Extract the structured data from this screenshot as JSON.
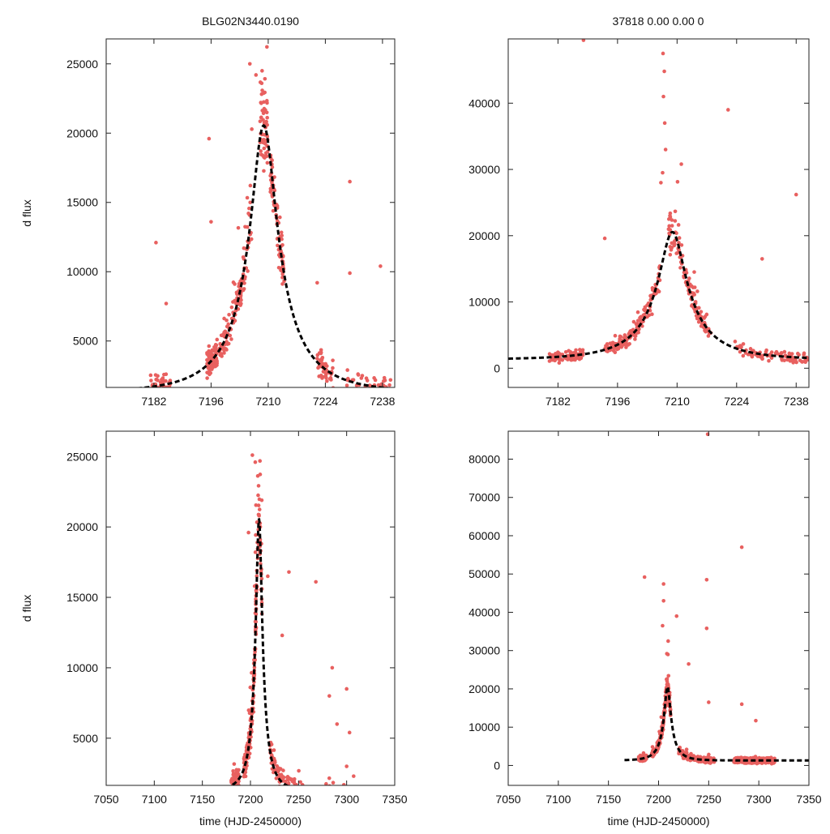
{
  "header": {
    "left_title": "BLG02N3440.0190",
    "right_title": "37818  0.00  0.00  0"
  },
  "colors": {
    "points": "#e8605f",
    "model": "#000000",
    "axes": "#222222"
  },
  "chart_data": [
    {
      "id": "top-left",
      "type": "scatter",
      "title": "",
      "xlabel": "",
      "ylabel": "d flux",
      "xlim": [
        7170.3,
        7241
      ],
      "ylim": [
        1650,
        26800
      ],
      "xticks": [
        7182,
        7196,
        7210,
        7224,
        7238
      ],
      "yticks": [
        5000,
        10000,
        15000,
        20000,
        25000
      ],
      "model": {
        "t0": 7208.9,
        "tE": 15.2,
        "peak": 20550,
        "baseline": 1300
      },
      "clusters": [
        {
          "t": [
            7181,
            7186
          ],
          "n": 60,
          "seed": 11
        },
        {
          "t": [
            7195,
            7197.5
          ],
          "n": 80,
          "seed": 12
        },
        {
          "t": [
            7198,
            7206
          ],
          "n": 120,
          "seed": 13
        },
        {
          "t": [
            7208,
            7210
          ],
          "n": 60,
          "seed": 14
        },
        {
          "t": [
            7210.5,
            7214
          ],
          "n": 80,
          "seed": 15
        },
        {
          "t": [
            7222,
            7226
          ],
          "n": 50,
          "seed": 16
        },
        {
          "t": [
            7229,
            7240
          ],
          "n": 50,
          "seed": 17
        }
      ],
      "outliers": [
        [
          7182.5,
          12100
        ],
        [
          7195.5,
          19600
        ],
        [
          7196,
          13600
        ],
        [
          7205.5,
          25000
        ],
        [
          7207,
          24200
        ],
        [
          7208.5,
          24500
        ],
        [
          7208.4,
          23600
        ],
        [
          7222,
          9200
        ],
        [
          7230,
          16500
        ],
        [
          7237.5,
          10400
        ],
        [
          7185,
          7700
        ],
        [
          7230,
          9900
        ]
      ]
    },
    {
      "id": "top-right",
      "type": "scatter",
      "title": "",
      "xlabel": "",
      "ylabel": "",
      "xlim": [
        7170.3,
        7241
      ],
      "ylim": [
        -2900,
        49700
      ],
      "xticks": [
        7182,
        7196,
        7210,
        7224,
        7238
      ],
      "yticks": [
        0,
        10000,
        20000,
        30000,
        40000
      ],
      "model": {
        "t0": 7208.9,
        "tE": 15.2,
        "peak": 20550,
        "baseline": 1300
      },
      "clusters": [
        {
          "t": [
            7180,
            7188
          ],
          "n": 80,
          "seed": 21
        },
        {
          "t": [
            7193,
            7206
          ],
          "n": 150,
          "seed": 22
        },
        {
          "t": [
            7208,
            7218
          ],
          "n": 120,
          "seed": 23
        },
        {
          "t": [
            7223,
            7241
          ],
          "n": 90,
          "seed": 24
        }
      ],
      "outliers": [
        [
          7188,
          49500
        ],
        [
          7206.7,
          47500
        ],
        [
          7207,
          44800
        ],
        [
          7206.8,
          41000
        ],
        [
          7207.1,
          37000
        ],
        [
          7207.3,
          33000
        ],
        [
          7206.6,
          29500
        ],
        [
          7206.2,
          28000
        ],
        [
          7211,
          30800
        ],
        [
          7222,
          39000
        ],
        [
          7238,
          26200
        ],
        [
          7193,
          19600
        ],
        [
          7230,
          16500
        ]
      ]
    },
    {
      "id": "bottom-left",
      "type": "scatter",
      "title": "",
      "xlabel": "time (HJD-2450000)",
      "ylabel": "d flux",
      "xlim": [
        7050,
        7350
      ],
      "ylim": [
        1650,
        26800
      ],
      "xticks": [
        7050,
        7100,
        7150,
        7200,
        7250,
        7300,
        7350
      ],
      "yticks": [
        5000,
        10000,
        15000,
        20000,
        25000
      ],
      "model": {
        "t0": 7208.9,
        "tE": 15.2,
        "peak": 20550,
        "baseline": 1300,
        "t_start": 7166
      },
      "clusters": [
        {
          "t": [
            7180,
            7188
          ],
          "n": 80,
          "seed": 31
        },
        {
          "t": [
            7193,
            7212
          ],
          "n": 200,
          "seed": 32
        },
        {
          "t": [
            7220,
            7255
          ],
          "n": 110,
          "seed": 33
        },
        {
          "t": [
            7278,
            7310
          ],
          "n": 14,
          "seed": 34
        }
      ],
      "outliers": [
        [
          7202,
          25100
        ],
        [
          7205,
          24600
        ],
        [
          7198,
          19600
        ],
        [
          7218,
          16500
        ],
        [
          7240,
          16800
        ],
        [
          7268,
          16100
        ],
        [
          7233,
          12300
        ],
        [
          7285,
          10000
        ],
        [
          7300,
          8500
        ],
        [
          7282,
          8000
        ],
        [
          7290,
          6000
        ],
        [
          7303,
          5400
        ],
        [
          7300,
          3000
        ]
      ]
    },
    {
      "id": "bottom-right",
      "type": "scatter",
      "title": "",
      "xlabel": "time (HJD-2450000)",
      "ylabel": "",
      "xlim": [
        7050,
        7350
      ],
      "ylim": [
        -5200,
        87300
      ],
      "xticks": [
        7050,
        7100,
        7150,
        7200,
        7250,
        7300,
        7350
      ],
      "yticks": [
        0,
        10000,
        20000,
        30000,
        40000,
        50000,
        60000,
        70000,
        80000
      ],
      "model": {
        "t0": 7208.9,
        "tE": 15.2,
        "peak": 20550,
        "baseline": 1300,
        "t_start": 7166
      },
      "clusters": [
        {
          "t": [
            7180,
            7188
          ],
          "n": 80,
          "seed": 41
        },
        {
          "t": [
            7193,
            7212
          ],
          "n": 200,
          "seed": 42
        },
        {
          "t": [
            7220,
            7256
          ],
          "n": 130,
          "seed": 43
        },
        {
          "t": [
            7275,
            7316
          ],
          "n": 260,
          "seed": 44
        }
      ],
      "outliers": [
        [
          7249,
          86500
        ],
        [
          7283,
          57000
        ],
        [
          7186,
          49200
        ],
        [
          7248,
          48500
        ],
        [
          7205,
          47400
        ],
        [
          7248,
          35800
        ],
        [
          7218,
          39000
        ],
        [
          7230,
          26500
        ],
        [
          7250,
          16500
        ],
        [
          7283,
          16000
        ],
        [
          7297,
          11700
        ],
        [
          7205,
          43000
        ],
        [
          7204,
          36500
        ]
      ]
    }
  ]
}
